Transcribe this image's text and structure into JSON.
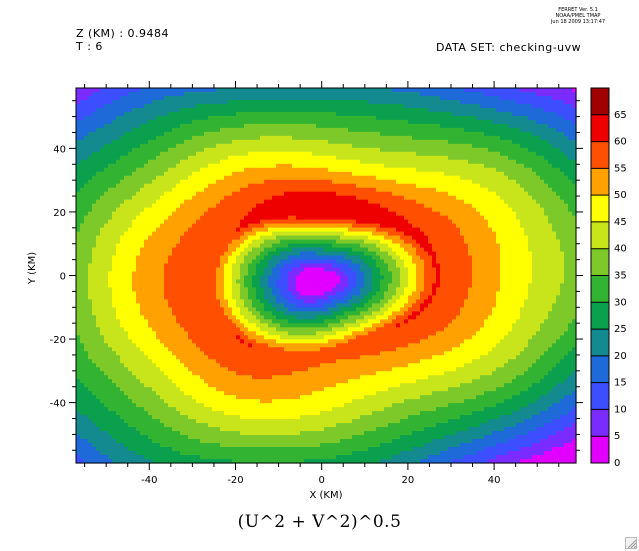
{
  "header": {
    "z_label": "Z (KM) : 0.9484",
    "t_label": "T : 6",
    "dataset_label": "DATA SET: checking-uvw",
    "ferret_lines": [
      "FERRET Ver. 5.1",
      "NOAA/PMEL TMAP",
      "Jun 18 2009 13:17:47"
    ]
  },
  "chart_data": {
    "type": "heatmap",
    "title": "(U^2 + V^2)^0.5",
    "xlabel": "X (KM)",
    "ylabel": "Y (KM)",
    "xlim": [
      -57,
      59
    ],
    "ylim": [
      -59,
      59
    ],
    "x_ticks": [
      -40,
      -20,
      0,
      20,
      40
    ],
    "y_ticks": [
      -40,
      -20,
      0,
      20,
      40
    ],
    "grid": false,
    "legend_position": "right",
    "colorbar": {
      "levels": [
        0,
        5,
        10,
        15,
        20,
        25,
        30,
        35,
        40,
        45,
        50,
        55,
        60,
        65
      ],
      "colors": [
        "#e100ff",
        "#7a2cff",
        "#3d4eff",
        "#1e6ad8",
        "#138a8f",
        "#0ba04d",
        "#32b432",
        "#7ec92a",
        "#c8e51b",
        "#ffff00",
        "#ffa100",
        "#ff4f00",
        "#ee0000",
        "#a00000"
      ]
    },
    "field": {
      "peak_value": 62,
      "eye_center": [
        -1,
        -2
      ],
      "center_value": 1
    }
  },
  "ui": {
    "resize_icon": "resize-grip-icon"
  }
}
